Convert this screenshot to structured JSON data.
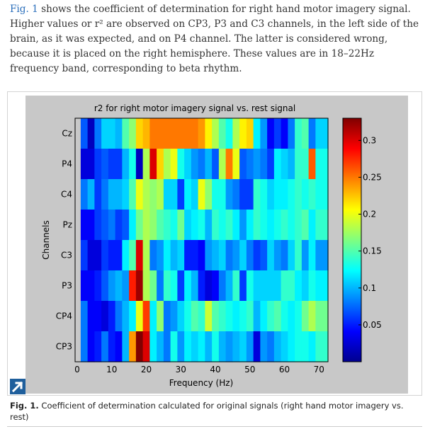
{
  "paragraph": {
    "link": "Fig. 1",
    "text": " shows the coefficient of determination for right hand motor imagery signal. Higher values or r² are observed on CP3, P3 and C3 channels, in the left side of the brain, as it was expected, and on P4 channel. The latter is considered wrong, because it is placed on the right hemisphere. These values are in 18–22Hz frequency band, corresponding to beta rhythm."
  },
  "caption": {
    "label": "Fig. 1.",
    "text": " Coefficient of determination calculated for original signals (right hand motor imagery vs. rest)"
  },
  "icons": {
    "expand": "expand-arrow-icon"
  },
  "chart_data": {
    "type": "heatmap",
    "title": "r2  for right motor imagery signal vs. rest signal",
    "xlabel": "Frequency (Hz)",
    "ylabel": "Channels",
    "x_ticks": [
      "0",
      "10",
      "20",
      "30",
      "40",
      "50",
      "60",
      "70"
    ],
    "xlim": [
      0,
      72
    ],
    "y_categories": [
      "Cz",
      "P4",
      "C4",
      "Pz",
      "C3",
      "P3",
      "CP4",
      "CP3"
    ],
    "x_centers": [
      2,
      4,
      6,
      8,
      10,
      12,
      14,
      16,
      18,
      20,
      22,
      24,
      26,
      28,
      30,
      32,
      34,
      36,
      38,
      40,
      42,
      44,
      46,
      48,
      50,
      52,
      54,
      56,
      58,
      60,
      62,
      64,
      66,
      68,
      70
    ],
    "values": [
      [
        0.07,
        0.02,
        0.08,
        0.11,
        0.11,
        0.1,
        0.15,
        0.17,
        0.22,
        0.23,
        0.25,
        0.25,
        0.25,
        0.25,
        0.25,
        0.25,
        0.25,
        0.24,
        0.21,
        0.18,
        0.15,
        0.13,
        0.18,
        0.21,
        0.22,
        0.12,
        0.09,
        0.04,
        0.06,
        0.04,
        0.08,
        0.14,
        0.15,
        0.08,
        0.11
      ],
      [
        0.03,
        0.03,
        0.06,
        0.07,
        0.06,
        0.06,
        0.1,
        0.13,
        0.02,
        0.18,
        0.3,
        0.22,
        0.18,
        0.2,
        0.13,
        0.11,
        0.09,
        0.08,
        0.1,
        0.07,
        0.18,
        0.25,
        0.2,
        0.07,
        0.08,
        0.09,
        0.08,
        0.06,
        0.12,
        0.11,
        0.1,
        0.14,
        0.14,
        0.26,
        0.13
      ],
      [
        0.08,
        0.1,
        0.06,
        0.08,
        0.1,
        0.1,
        0.11,
        0.15,
        0.2,
        0.18,
        0.17,
        0.18,
        0.11,
        0.11,
        0.06,
        0.12,
        0.11,
        0.2,
        0.17,
        0.13,
        0.13,
        0.09,
        0.08,
        0.06,
        0.06,
        0.14,
        0.13,
        0.11,
        0.12,
        0.12,
        0.13,
        0.14,
        0.13,
        0.14,
        0.13
      ],
      [
        0.04,
        0.04,
        0.06,
        0.07,
        0.08,
        0.06,
        0.07,
        0.12,
        0.16,
        0.18,
        0.17,
        0.15,
        0.14,
        0.13,
        0.16,
        0.11,
        0.12,
        0.13,
        0.1,
        0.14,
        0.13,
        0.14,
        0.12,
        0.09,
        0.12,
        0.14,
        0.13,
        0.12,
        0.13,
        0.14,
        0.13,
        0.14,
        0.15,
        0.12,
        0.14
      ],
      [
        0.06,
        0.03,
        0.03,
        0.06,
        0.05,
        0.05,
        0.12,
        0.15,
        0.3,
        0.18,
        0.08,
        0.09,
        0.12,
        0.1,
        0.11,
        0.05,
        0.05,
        0.04,
        0.09,
        0.1,
        0.11,
        0.08,
        0.09,
        0.11,
        0.08,
        0.06,
        0.07,
        0.11,
        0.09,
        0.08,
        0.11,
        0.14,
        0.09,
        0.12,
        0.09
      ],
      [
        0.04,
        0.04,
        0.05,
        0.07,
        0.09,
        0.1,
        0.09,
        0.28,
        0.32,
        0.18,
        0.16,
        0.08,
        0.14,
        0.13,
        0.06,
        0.12,
        0.1,
        0.05,
        0.03,
        0.04,
        0.08,
        0.1,
        0.14,
        0.06,
        0.13,
        0.11,
        0.11,
        0.11,
        0.11,
        0.14,
        0.14,
        0.12,
        0.11,
        0.13,
        0.12
      ],
      [
        0.08,
        0.04,
        0.04,
        0.03,
        0.05,
        0.08,
        0.1,
        0.12,
        0.2,
        0.27,
        0.12,
        0.17,
        0.08,
        0.09,
        0.11,
        0.13,
        0.15,
        0.14,
        0.19,
        0.15,
        0.14,
        0.13,
        0.12,
        0.13,
        0.14,
        0.1,
        0.12,
        0.14,
        0.15,
        0.13,
        0.12,
        0.13,
        0.16,
        0.18,
        0.16
      ],
      [
        0.08,
        0.04,
        0.05,
        0.08,
        0.05,
        0.04,
        0.1,
        0.24,
        0.33,
        0.3,
        0.12,
        0.1,
        0.08,
        0.13,
        0.09,
        0.12,
        0.11,
        0.12,
        0.1,
        0.13,
        0.1,
        0.09,
        0.1,
        0.11,
        0.09,
        0.03,
        0.09,
        0.08,
        0.1,
        0.11,
        0.12,
        0.13,
        0.13,
        0.12,
        0.14
      ]
    ],
    "colorbar": {
      "min": 0.0,
      "max": 0.33,
      "ticks": [
        "0.05",
        "0.1",
        "0.15",
        "0.2",
        "0.25",
        "0.3"
      ],
      "colormap": "jet"
    },
    "grid": false
  }
}
